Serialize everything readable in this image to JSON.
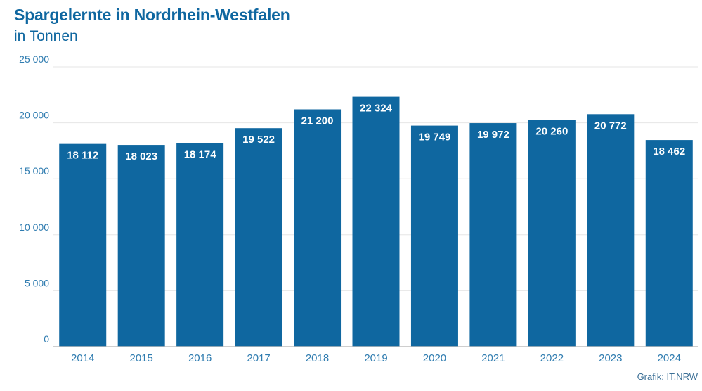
{
  "title": "Spargelernte in Nordrhein-Westfalen",
  "subtitle": "in Tonnen",
  "source": "Grafik: IT.NRW",
  "colors": {
    "bar": "#0f67a0",
    "text": "#0f67a0"
  },
  "chart_data": {
    "type": "bar",
    "title": "Spargelernte in Nordrhein-Westfalen",
    "subtitle": "in Tonnen",
    "categories": [
      "2014",
      "2015",
      "2016",
      "2017",
      "2018",
      "2019",
      "2020",
      "2021",
      "2022",
      "2023",
      "2024"
    ],
    "values": [
      18112,
      18023,
      18174,
      19522,
      21200,
      22324,
      19749,
      19972,
      20260,
      20772,
      18462
    ],
    "value_labels": [
      "18 112",
      "18 023",
      "18 174",
      "19 522",
      "21 200",
      "22 324",
      "19 749",
      "19 972",
      "20 260",
      "20 772",
      "18 462"
    ],
    "ylim": [
      0,
      25000
    ],
    "yticks": [
      0,
      5000,
      10000,
      15000,
      20000,
      25000
    ],
    "ytick_labels": [
      "0",
      "5 000",
      "10 000",
      "15 000",
      "20 000",
      "25 000"
    ],
    "grid": true,
    "xlabel": "",
    "ylabel": ""
  }
}
